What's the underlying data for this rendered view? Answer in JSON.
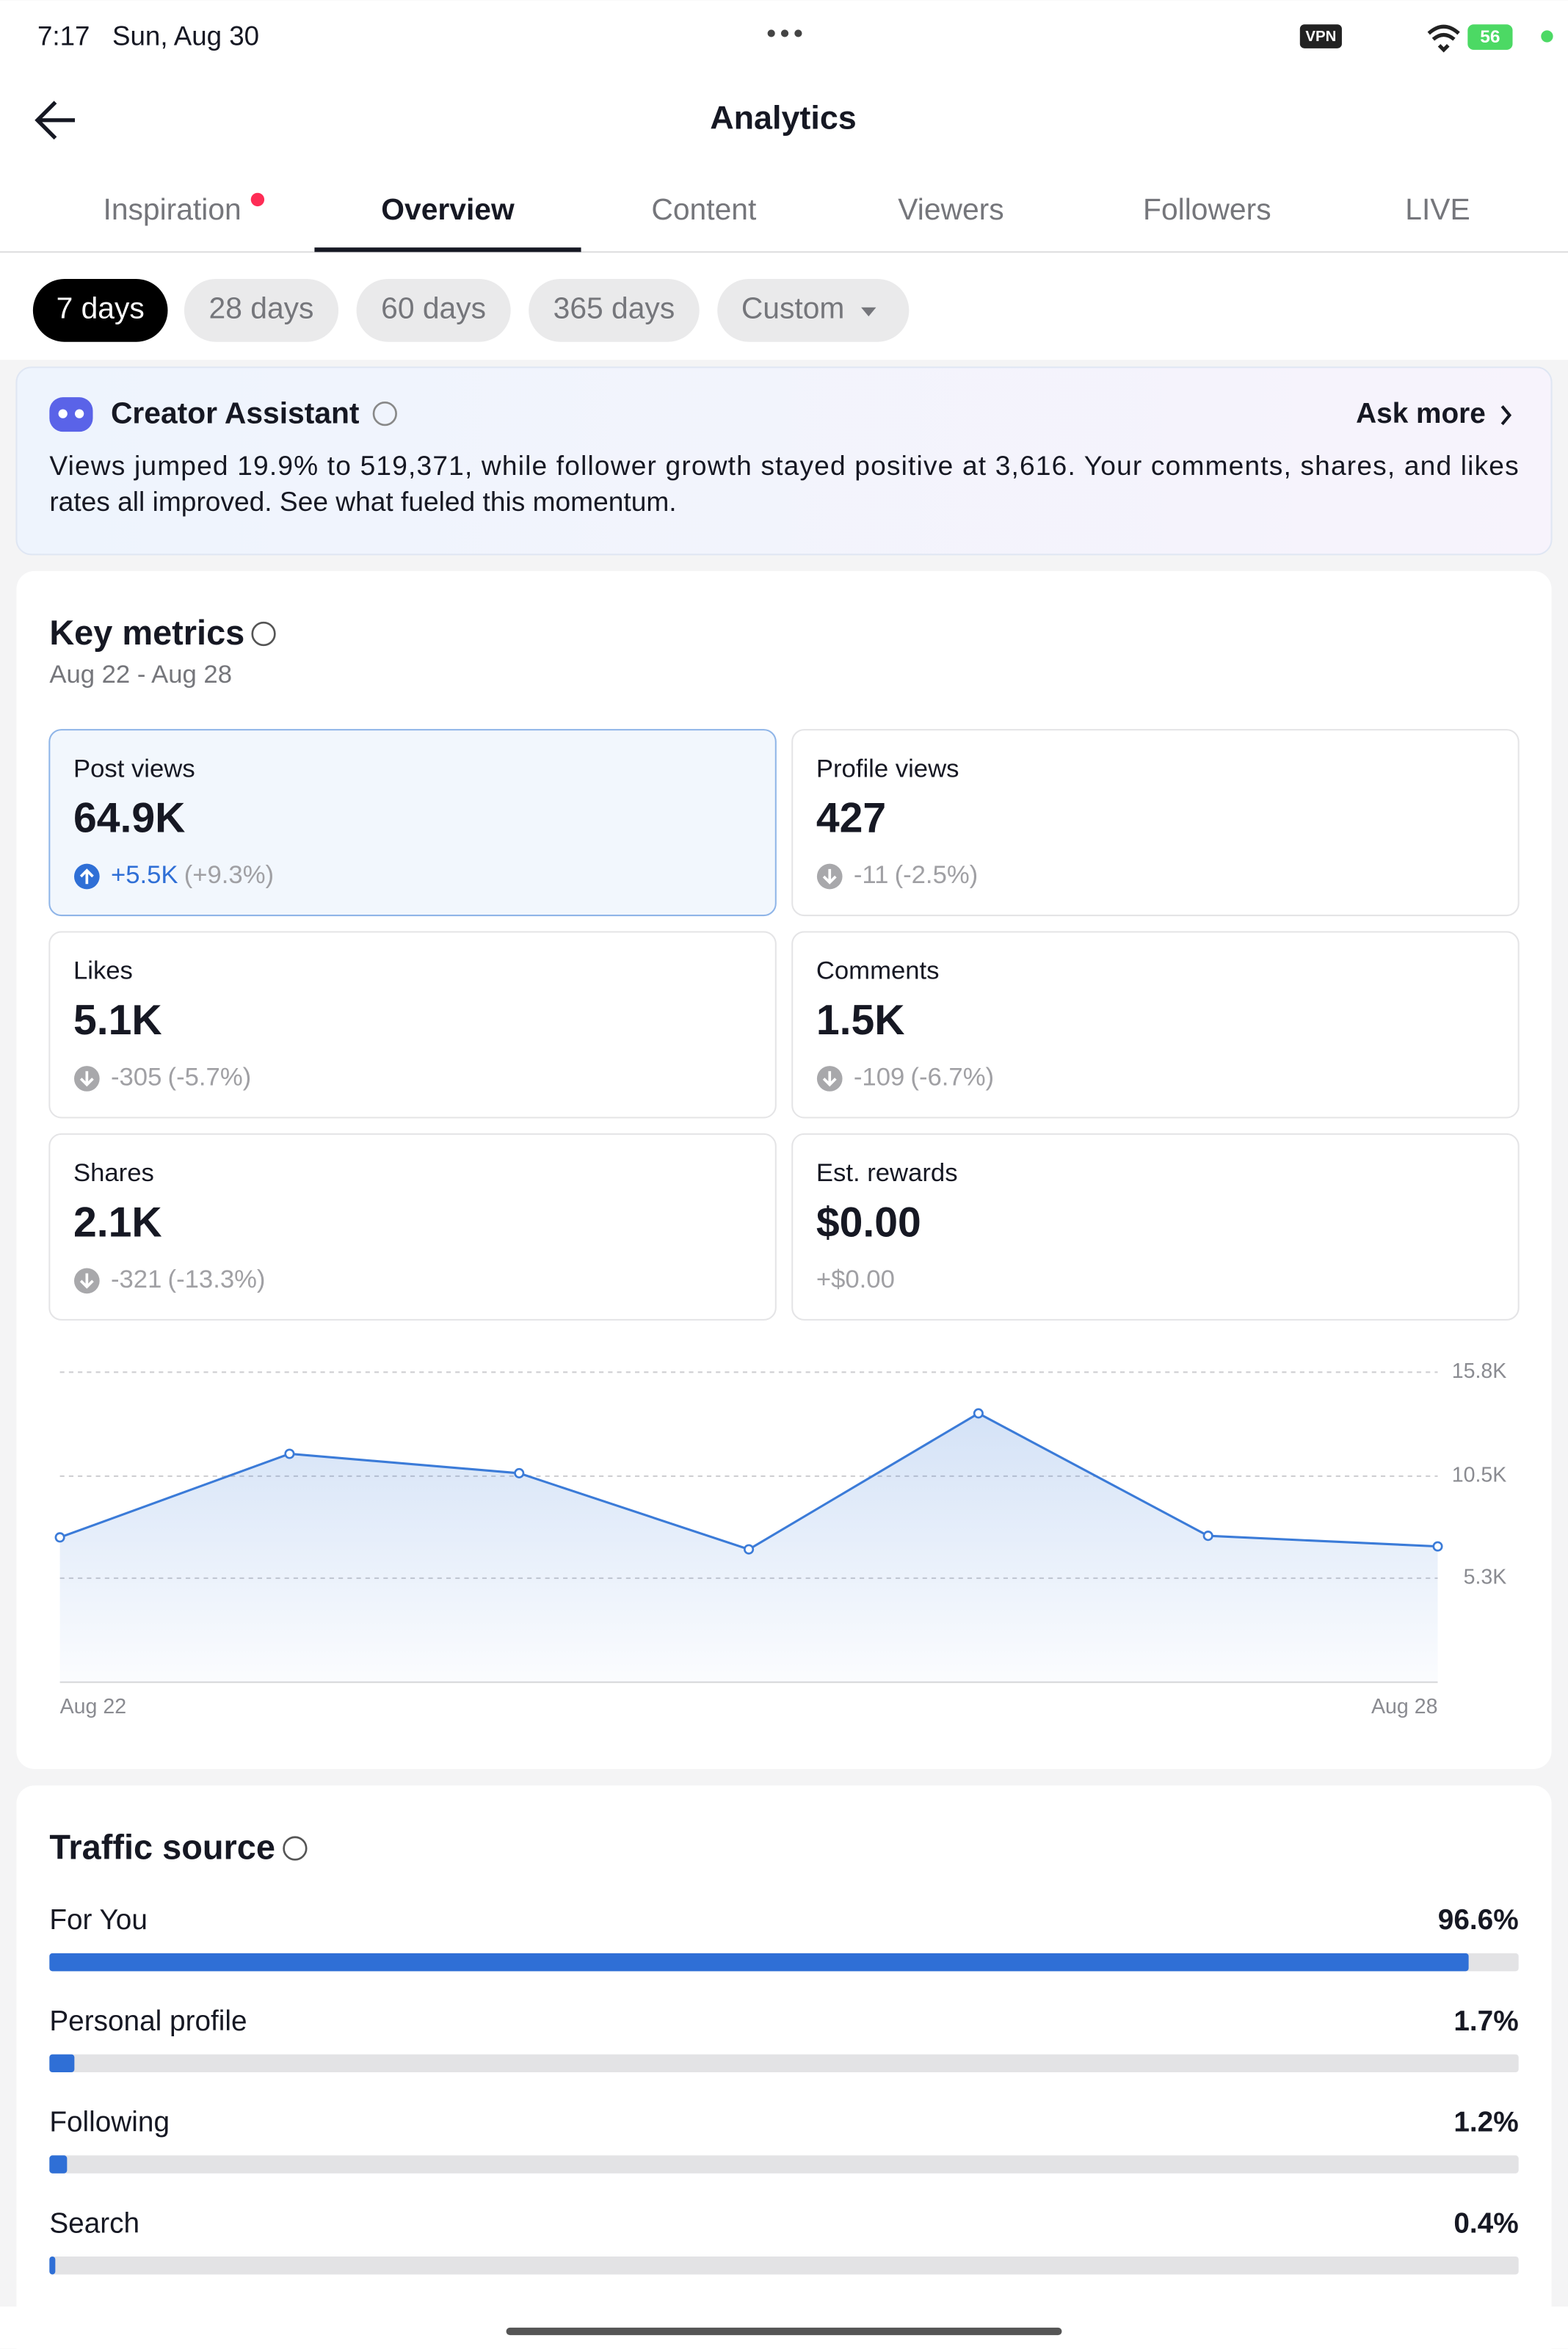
{
  "status_bar": {
    "time": "7:17",
    "date": "Sun, Aug 30",
    "vpn": "VPN",
    "battery": "56"
  },
  "header": {
    "title": "Analytics"
  },
  "tabs": [
    "Inspiration",
    "Overview",
    "Content",
    "Viewers",
    "Followers",
    "LIVE"
  ],
  "active_tab": 1,
  "ranges": [
    "7 days",
    "28 days",
    "60 days",
    "365 days",
    "Custom"
  ],
  "active_range": 0,
  "assistant": {
    "title": "Creator Assistant",
    "action": "Ask more",
    "lines": [
      "Views jumped 19.9% to 519,371, while follower growth stayed positive at 3,616. Your comments, shares, and likes",
      "rates all improved. See what fueled this momentum."
    ]
  },
  "key_metrics": {
    "title": "Key metrics",
    "subtitle": "Aug 22 - Aug 28",
    "tiles": [
      {
        "label": "Post views",
        "value": "64.9K",
        "change": "+5.5K",
        "change_pct": "(+9.3%)",
        "direction": "up"
      },
      {
        "label": "Profile views",
        "value": "427",
        "change": "-11",
        "change_pct": "(-2.5%)",
        "direction": "down"
      },
      {
        "label": "Likes",
        "value": "5.1K",
        "change": "-305",
        "change_pct": "(-5.7%)",
        "direction": "down"
      },
      {
        "label": "Comments",
        "value": "1.5K",
        "change": "-109",
        "change_pct": "(-6.7%)",
        "direction": "down"
      },
      {
        "label": "Shares",
        "value": "2.1K",
        "change": "-321",
        "change_pct": "(-13.3%)",
        "direction": "down"
      },
      {
        "label": "Est. rewards",
        "value": "$0.00",
        "change": "+$0.00",
        "direction": "none"
      }
    ]
  },
  "chart_data": {
    "type": "line",
    "categories": [
      "Aug 22",
      null,
      null,
      null,
      null,
      null,
      "Aug 28"
    ],
    "series": [
      {
        "color": "#3b7bd8",
        "values": [
          7380,
          11640,
          10650,
          6770,
          13700,
          7460,
          6920
        ]
      }
    ],
    "ylim": [
      0,
      15800
    ],
    "yticks": [
      {
        "value": 5300,
        "label": "5.3K"
      },
      {
        "value": 10500,
        "label": "10.5K"
      },
      {
        "value": 15800,
        "label": "15.8K"
      }
    ],
    "grid": true
  },
  "traffic_source": {
    "title": "Traffic source",
    "color": "#2f6fd6",
    "rows": [
      {
        "name": "For You",
        "value": 96.6,
        "value_label": "96.6%"
      },
      {
        "name": "Personal profile",
        "value": 1.7,
        "value_label": "1.7%"
      },
      {
        "name": "Following",
        "value": 1.2,
        "value_label": "1.2%"
      },
      {
        "name": "Search",
        "value": 0.4,
        "value_label": "0.4%"
      }
    ]
  }
}
